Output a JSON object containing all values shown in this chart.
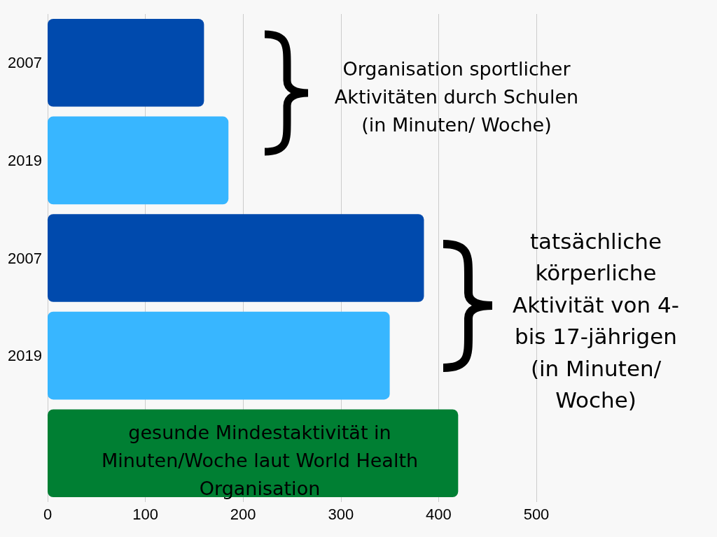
{
  "chart_data": {
    "type": "bar",
    "orientation": "horizontal",
    "categories": [
      "2007",
      "2019",
      "2007",
      "2019",
      null
    ],
    "values": [
      160,
      185,
      385,
      350,
      420
    ],
    "colors": [
      "#004aad",
      "#38b6ff",
      "#004aad",
      "#38b6ff",
      "#007f33"
    ],
    "xlim": [
      0,
      500
    ],
    "xticks": [
      0,
      100,
      200,
      300,
      400,
      500
    ],
    "grid": "x",
    "annotations": [
      "Organisation sportlicher\nAktivitäten durch Schulen\n(in Minuten/ Woche)",
      "tatsächliche\nkörperliche\nAktivität von 4-\nbis 17-jährigen\n(in Minuten/\nWoche)",
      "gesunde Mindestaktivität in\nMinuten/Woche laut World Health\nOrganisation"
    ]
  }
}
